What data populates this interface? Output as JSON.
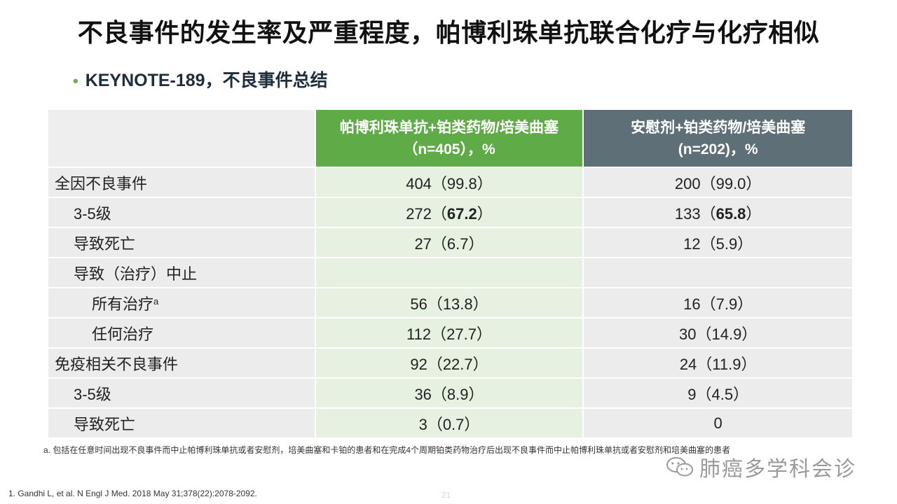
{
  "title": "不良事件的发生率及严重程度，帕博利珠单抗联合化疗与化疗相似",
  "subtitle": "KEYNOTE-189，不良事件总结",
  "table": {
    "header_a_line1": "帕博利珠单抗+铂类药物/培美曲塞",
    "header_a_line2": "（n=405），%",
    "header_b_line1": "安慰剂+铂类药物/培美曲塞",
    "header_b_line2": "(n=202)，%",
    "rows": [
      {
        "label": "全因不良事件",
        "a_num": "404",
        "a_pct": "（99.8）",
        "b_num": "200",
        "b_pct": "（99.0）"
      },
      {
        "label": "3-5级",
        "a_num": "272",
        "a_pre": "（",
        "a_bold": "67.2",
        "a_post": "）",
        "b_num": "133",
        "b_pre": "（",
        "b_bold": "65.8",
        "b_post": "）"
      },
      {
        "label": "导致死亡",
        "a_num": "27",
        "a_pct": "（6.7）",
        "b_num": "12",
        "b_pct": "（5.9）"
      },
      {
        "label": "导致（治疗）中止"
      },
      {
        "label": "所有治疗",
        "label_sup": "a",
        "a_num": "56",
        "a_pct": "（13.8）",
        "b_num": "16",
        "b_pct": "（7.9）"
      },
      {
        "label": "任何治疗",
        "a_num": "112",
        "a_pct": "（27.7）",
        "b_num": "30",
        "b_pct": "（14.9）"
      },
      {
        "label": "免疫相关不良事件",
        "a_num": "92",
        "a_pct": "（22.7）",
        "b_num": "24",
        "b_pct": "（11.9）"
      },
      {
        "label": "3-5级",
        "a_num": "36",
        "a_pct": "（8.9）",
        "b_num": "9",
        "b_pct": "（4.5）"
      },
      {
        "label": "导致死亡",
        "a_num": "3",
        "a_pct": "（0.7）",
        "b_num": "0",
        "b_pct": ""
      }
    ]
  },
  "footnote_a": "a. 包括在任意时间出现不良事件而中止帕博利珠单抗或者安慰剂，培美曲塞和卡铂的患者和在完成4个周期铂类药物治疗后出现不良事件而中止帕博利珠单抗或者安慰剂和培美曲塞的患者",
  "reference": "1.   Gandhi L, et al. N Engl J Med. 2018 May 31;378(22):2078-2092.",
  "page_number": "21",
  "watermark": "肺癌多学科会诊",
  "colors": {
    "green_header": "#5fab47",
    "gray_header": "#5f6f78",
    "bullet": "#6bb04a"
  }
}
